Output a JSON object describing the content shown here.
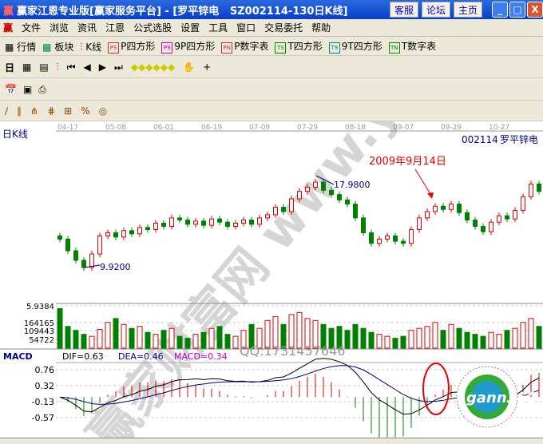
{
  "window": {
    "title": "赢家江恩专业版[赢家服务平台] - [罗平锌电   SZ002114-130日K线]",
    "buttons": [
      "客服",
      "论坛",
      "主页"
    ]
  },
  "menu": [
    "文件",
    "浏览",
    "资讯",
    "江恩",
    "公式选股",
    "设置",
    "工具",
    "窗口",
    "交易委托",
    "帮助"
  ],
  "toolbar": [
    "行情",
    "板块",
    "K线",
    "P四方形",
    "9P四方形",
    "P数字表",
    "T四方形",
    "9T四方形",
    "T数字表"
  ],
  "toolbar_icons": [
    "PS",
    "P9",
    "PN",
    "TS",
    "T9",
    "TN"
  ],
  "period": "日",
  "chart": {
    "label": "日K线",
    "code": "002114",
    "name": "罗平锌电",
    "dates": [
      "04-17",
      "05-08",
      "06-01",
      "06-19",
      "07-09",
      "07-29",
      "08-18",
      "09-07",
      "09-29",
      "10-27"
    ],
    "low_label": "9.9200",
    "high_label": "17.9800",
    "annotation": "2009年9月14日",
    "watermark": "赢家财富网 www.yingjia360.com",
    "qq": "QQ:1731457646",
    "volume_ticks": [
      "5.9384",
      "164165",
      "109443",
      "54722"
    ],
    "macd": {
      "title": "MACD",
      "dif": "DIF=0.63",
      "dea": "DEA=0.46",
      "macd": "MACD=0.34",
      "ticks": [
        "0.76",
        "0.32",
        "-0.13",
        "-0.57"
      ]
    },
    "logo": "gann360",
    "colors": {
      "up": "#e00000",
      "down": "#008000",
      "dif": "#000000",
      "dea": "#000080",
      "macd_label": "#c000c0"
    }
  },
  "chart_data": {
    "type": "candlestick",
    "price_range": [
      9.92,
      17.98
    ],
    "closes": [
      12.6,
      11.5,
      10.6,
      9.92,
      11.2,
      12.9,
      13.2,
      12.8,
      13.4,
      13.1,
      13.7,
      13.5,
      14.1,
      13.8,
      14.6,
      14.4,
      14.0,
      14.3,
      13.9,
      14.5,
      14.2,
      13.8,
      14.1,
      14.4,
      14.0,
      14.6,
      14.9,
      15.6,
      15.2,
      16.4,
      17.1,
      17.5,
      17.98,
      17.2,
      16.8,
      16.3,
      15.9,
      14.6,
      13.2,
      12.2,
      12.6,
      12.9,
      12.4,
      12.2,
      13.5,
      14.6,
      15.2,
      15.7,
      15.4,
      15.9,
      15.1,
      14.4,
      13.8,
      13.3,
      14.2,
      14.8,
      14.5,
      15.3,
      16.6,
      17.8,
      17.1
    ],
    "volumes": [
      200000,
      110000,
      90000,
      70000,
      60000,
      95000,
      130000,
      150000,
      120000,
      100000,
      110000,
      80000,
      70000,
      90000,
      100000,
      60000,
      50000,
      70000,
      80000,
      100000,
      110000,
      70000,
      60000,
      90000,
      120000,
      100000,
      140000,
      160000,
      120000,
      170000,
      180000,
      150000,
      140000,
      120000,
      100000,
      110000,
      90000,
      120000,
      100000,
      80000,
      70000,
      60000,
      50000,
      60000,
      90000,
      100000,
      110000,
      130000,
      90000,
      120000,
      100000,
      80000,
      70000,
      60000,
      80000,
      70000,
      90000,
      100000,
      130000,
      150000,
      110000
    ]
  }
}
